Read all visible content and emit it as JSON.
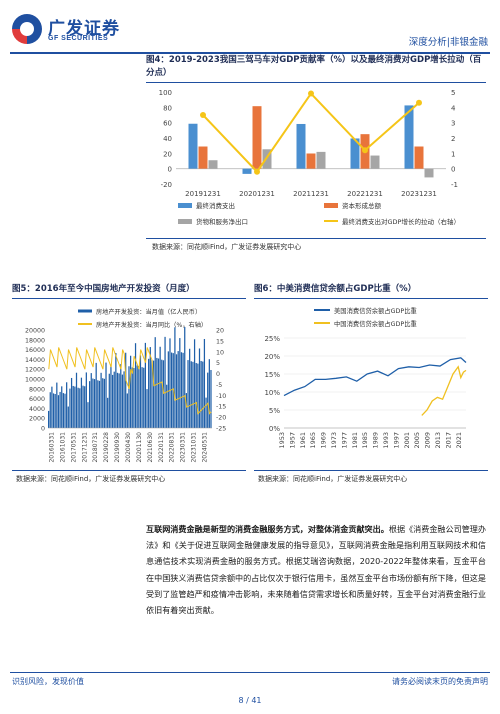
{
  "header": {
    "logo_cn": "广发证券",
    "logo_en": "GF SECURITIES",
    "right_text": "深度分析|非银金融"
  },
  "fig4": {
    "title": "图4：2019-2023我国三驾马车对GDP贡献率（%）以及最终消费对GDP增长拉动（百分点）",
    "source": "数据来源：同花顺iFind，广发证券发展研究中心"
  },
  "fig5": {
    "title": "图5：2016年至今中国房地产开发投资（月度）",
    "source": "数据来源：同花顺iFind，广发证券发展研究中心"
  },
  "fig6": {
    "title": "图6：中美消费信贷余额占GDP比重（%）",
    "source": "数据来源：同花顺iFind，广发证券发展研究中心"
  },
  "paragraph": {
    "lead": "互联网消费金融是新型的消费金融服务方式，对整体消金贡献突出。",
    "body": "根据《消费金融公司管理办法》和《关于促进互联网金融健康发展的指导意见》，互联网消费金融是指利用互联网技术和信息通信技术实现消费金融的服务方式。根据艾瑞咨询数据，2020-2022年整体来看，互金平台在中国狭义消费信贷余额中的占比仅次于银行信用卡，虽然互金平台市场份额有所下降，但这是受到了监管趋严和疫情冲击影响，未来随着信贷需求增长和质量好转，互金平台对消费金融行业依旧有着突出贡献。"
  },
  "footer": {
    "left": "识别风险，发现价值",
    "right": "请务必阅读末页的免责声明",
    "page": "8 / 41"
  },
  "chart_data": [
    {
      "type": "bar",
      "title": "图4：2019-2023我国三驾马车对GDP贡献率（%）以及最终消费对GDP增长拉动（百分点）",
      "categories": [
        "20191231",
        "20201231",
        "20211231",
        "20221231",
        "20231231"
      ],
      "ylim": [
        -20,
        100
      ],
      "y2lim": [
        -1,
        5
      ],
      "yticks": [
        -20,
        0,
        20,
        40,
        60,
        80,
        100
      ],
      "y2ticks": [
        -1,
        0,
        1,
        2,
        3,
        4,
        5
      ],
      "series": [
        {
          "name": "最终消费支出",
          "color": "#4a8fd0",
          "values": [
            58.6,
            -6.8,
            58.3,
            39.4,
            82.5
          ]
        },
        {
          "name": "资本形成总额",
          "color": "#e8743b",
          "values": [
            28.9,
            81.5,
            19.8,
            45.0,
            28.9
          ]
        },
        {
          "name": "货物和服务净出口",
          "color": "#a5a5a5",
          "values": [
            11.0,
            25.3,
            21.9,
            17.1,
            -11.4
          ]
        }
      ],
      "line_series": {
        "name": "最终消费支出对GDP增长的拉动（右轴）",
        "color": "#f5c518",
        "values": [
          3.5,
          -0.2,
          4.9,
          1.2,
          4.3
        ]
      }
    },
    {
      "type": "bar",
      "title": "图5：2016年至今中国房地产开发投资（月度）",
      "ylim": [
        0,
        20000
      ],
      "y2lim": [
        -25,
        20
      ],
      "yticks": [
        0,
        2000,
        4000,
        6000,
        8000,
        10000,
        12000,
        14000,
        16000,
        18000,
        20000
      ],
      "y2ticks": [
        -25,
        -20,
        -15,
        -10,
        -5,
        0,
        5,
        10,
        15,
        20
      ],
      "x_tick_labels": [
        "20160331",
        "20161031",
        "20170531",
        "20171231",
        "20180731",
        "20190228",
        "20190930",
        "20200430",
        "20201130",
        "20210630",
        "20220131",
        "20220831",
        "20230331",
        "20231031",
        "20240531"
      ],
      "series": [
        {
          "name": "房地产开发投资：当月值（亿人民币）",
          "color": "#1f5fa8"
        }
      ],
      "line_series": {
        "name": "房地产开发投资：当月同比（%，右轴）",
        "color": "#f0c020"
      }
    },
    {
      "type": "line",
      "title": "图6：中美消费信贷余额占GDP比重（%）",
      "ylim": [
        0,
        25
      ],
      "yticks": [
        "0%",
        "5%",
        "10%",
        "15%",
        "20%",
        "25%"
      ],
      "x_tick_labels": [
        "1953",
        "1957",
        "1961",
        "1965",
        "1969",
        "1973",
        "1977",
        "1981",
        "1985",
        "1989",
        "1993",
        "1997",
        "2001",
        "2005",
        "2009",
        "2013",
        "2017",
        "2021"
      ],
      "series": [
        {
          "name": "美国消费信贷余额占GDP比重",
          "color": "#1f5fa8",
          "x": [
            1953,
            1957,
            1961,
            1965,
            1969,
            1973,
            1977,
            1981,
            1985,
            1989,
            1993,
            1997,
            2001,
            2005,
            2009,
            2013,
            2017,
            2021,
            2023
          ],
          "values": [
            9.0,
            10.5,
            11.5,
            13.5,
            13.5,
            13.8,
            14.2,
            13.0,
            15.0,
            15.8,
            14.5,
            16.5,
            17.0,
            16.8,
            17.5,
            17.2,
            19.0,
            19.5,
            18.2
          ]
        },
        {
          "name": "中国消费信贷余额占GDP比重",
          "color": "#f0c020",
          "x": [
            2006,
            2008,
            2010,
            2012,
            2014,
            2016,
            2018,
            2020,
            2021,
            2022,
            2023
          ],
          "values": [
            3.5,
            5.0,
            7.5,
            8.5,
            8.0,
            11.5,
            15.0,
            17.0,
            14.0,
            15.5,
            16.0
          ]
        }
      ]
    }
  ]
}
